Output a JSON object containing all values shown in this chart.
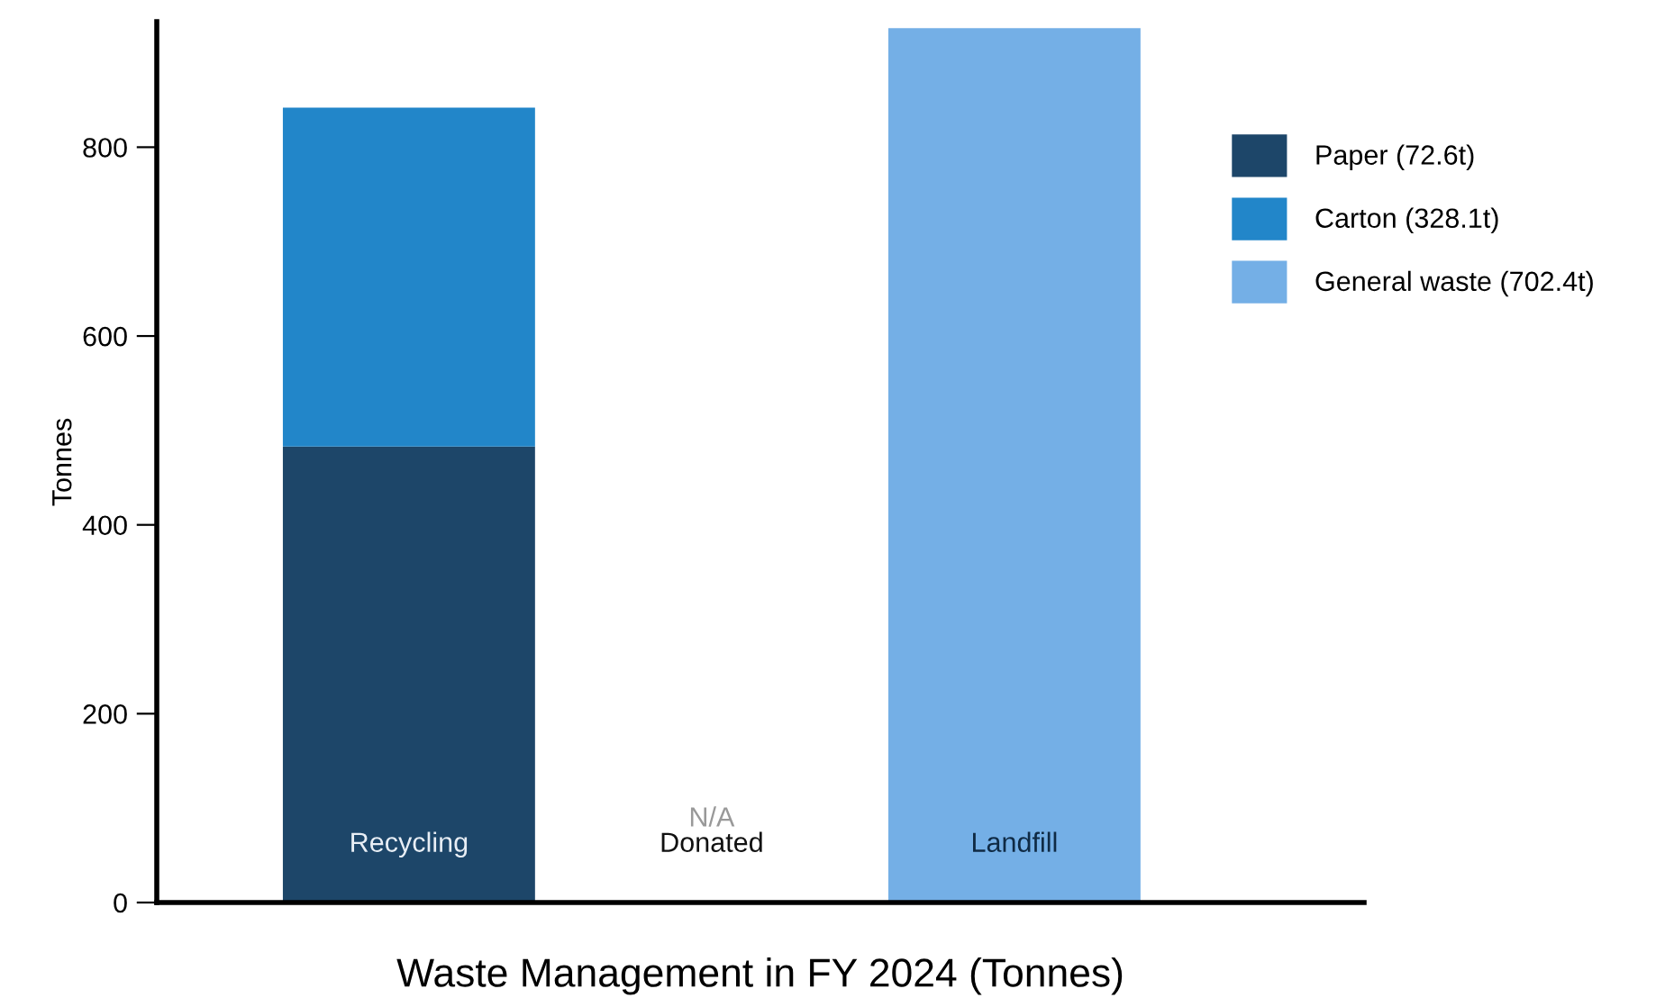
{
  "chart_data": {
    "type": "bar",
    "stacked": true,
    "xlabel": "Waste Management in FY 2024 (Tonnes)",
    "ylabel": "Tonnes",
    "categories": [
      "Recycling",
      "Donated",
      "Landfill"
    ],
    "series": [
      {
        "name": "Paper (72.6t)",
        "color": "#1d4669",
        "values": [
          483,
          null,
          null
        ]
      },
      {
        "name": "Carton (328.1t)",
        "color": "#2286c9",
        "values": [
          359,
          null,
          null
        ]
      },
      {
        "name": "General waste (702.4t)",
        "color": "#74afe6",
        "values": [
          null,
          null,
          926
        ]
      }
    ],
    "ylim": [
      0,
      933
    ],
    "yticks": [
      0,
      200,
      400,
      600,
      800
    ],
    "annotations": [
      "N/A"
    ],
    "grid": false,
    "legend": "right"
  }
}
